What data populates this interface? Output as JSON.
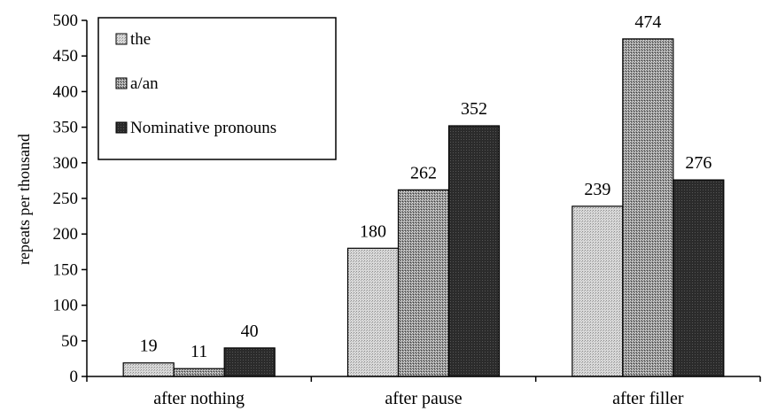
{
  "chart_data": {
    "type": "bar",
    "categories": [
      "after nothing",
      "after pause",
      "after filler"
    ],
    "series": [
      {
        "name": "the",
        "values": [
          19,
          180,
          239
        ]
      },
      {
        "name": "a/an",
        "values": [
          11,
          262,
          474
        ]
      },
      {
        "name": "Nominative pronouns",
        "values": [
          40,
          352,
          276
        ]
      }
    ],
    "data_labels": [
      [
        "19",
        "180",
        "239"
      ],
      [
        "11",
        "262",
        "474"
      ],
      [
        "40",
        "352",
        "276"
      ]
    ],
    "ylabel": "repeats per thousand",
    "ylim": [
      0,
      500
    ],
    "yticks": [
      "0",
      "50",
      "100",
      "150",
      "200",
      "250",
      "300",
      "350",
      "400",
      "450",
      "500"
    ],
    "legend_position": "top-left",
    "grid": false,
    "colors": [
      "#cfcfcf",
      "#9a9a9a",
      "#2b2b2b"
    ]
  }
}
